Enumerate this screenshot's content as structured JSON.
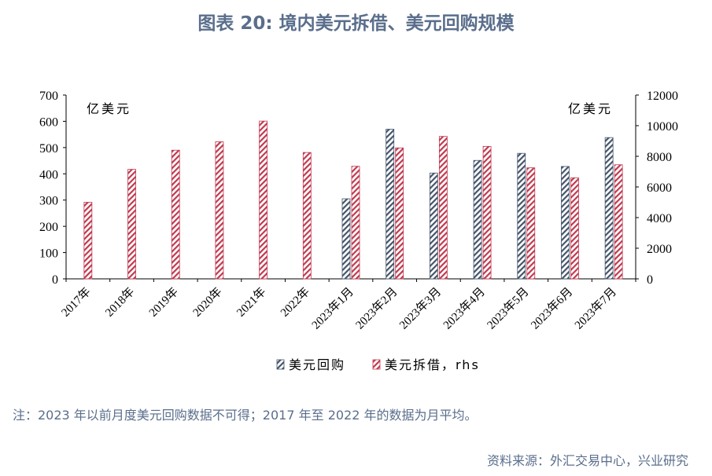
{
  "page": {
    "title": "图表 20: 境内美元拆借、美元回购规模",
    "note": "注：2023 年以前月度美元回购数据不可得；2017 年至 2022 年的数据为月平均。",
    "source": "资料来源：外汇交易中心，兴业研究"
  },
  "chart_data": {
    "type": "bar",
    "categories": [
      "2017年",
      "2018年",
      "2019年",
      "2020年",
      "2021年",
      "2022年",
      "2023年1月",
      "2023年2月",
      "2023年3月",
      "2023年4月",
      "2023年5月",
      "2023年6月",
      "2023年7月"
    ],
    "series": [
      {
        "name": "美元回购",
        "axis": "left",
        "color": "#44546a",
        "values": [
          null,
          null,
          null,
          null,
          null,
          null,
          305,
          570,
          403,
          451,
          478,
          428,
          538
        ]
      },
      {
        "name": "美元拆借，rhs",
        "axis": "right",
        "color": "#c0394f",
        "values": [
          5000,
          7150,
          8400,
          8950,
          10300,
          8250,
          7350,
          8550,
          9300,
          8650,
          7250,
          6600,
          7450
        ]
      }
    ],
    "left_axis": {
      "ylim": [
        0,
        700
      ],
      "ticks": [
        0,
        100,
        200,
        300,
        400,
        500,
        600,
        700
      ],
      "unit_label": "亿美元"
    },
    "right_axis": {
      "ylim": [
        0,
        12000
      ],
      "ticks": [
        0,
        2000,
        4000,
        6000,
        8000,
        10000,
        12000
      ],
      "unit_label": "亿美元"
    },
    "grid": false,
    "legend_position": "bottom"
  }
}
